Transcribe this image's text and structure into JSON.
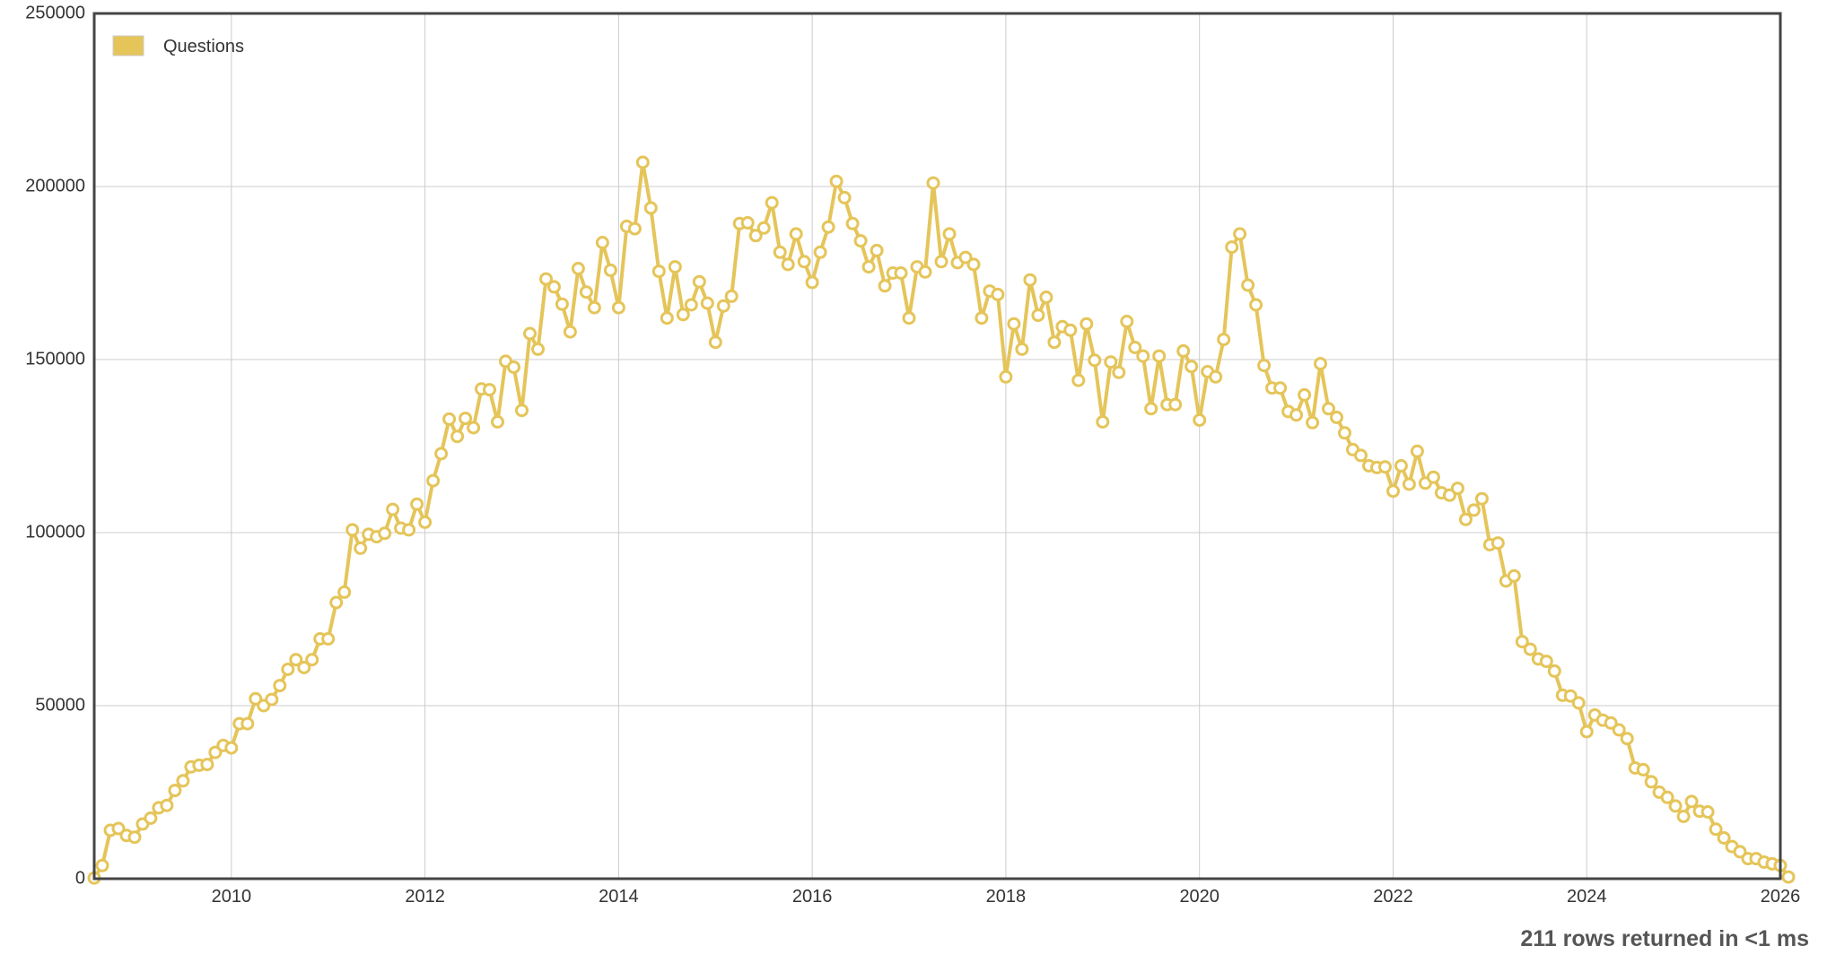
{
  "legend": {
    "label": "Questions",
    "color": "#e5c55a"
  },
  "status": {
    "text": "211 rows returned in <1 ms"
  },
  "colors": {
    "series": "#e5c55a",
    "point_fill": "#ffffff",
    "grid": "#cccccc",
    "frame": "#444444",
    "text": "#333333"
  },
  "chart_data": {
    "type": "line",
    "title": "",
    "xlabel": "",
    "ylabel": "",
    "legend_position": "top-left",
    "grid": true,
    "xlim": [
      "2008-08",
      "2026-01"
    ],
    "ylim": [
      0,
      250000
    ],
    "x_ticks": [
      "2010",
      "2012",
      "2014",
      "2016",
      "2018",
      "2020",
      "2022",
      "2024",
      "2026"
    ],
    "y_ticks": [
      0,
      50000,
      100000,
      150000,
      200000,
      250000
    ],
    "series": [
      {
        "name": "Questions",
        "start": "2008-08",
        "interval": "month",
        "values": [
          200,
          3800,
          14000,
          14500,
          12500,
          12000,
          15800,
          17500,
          20500,
          21200,
          25500,
          28300,
          32300,
          32800,
          33000,
          36500,
          38500,
          37800,
          44800,
          44800,
          52000,
          50000,
          51800,
          55800,
          60500,
          63300,
          61000,
          63300,
          69300,
          69300,
          79800,
          82800,
          100800,
          95500,
          99500,
          98800,
          99800,
          106700,
          101300,
          100800,
          108200,
          103000,
          115000,
          122800,
          132800,
          127800,
          133000,
          130300,
          141500,
          141300,
          132000,
          149500,
          147800,
          135300,
          157500,
          153000,
          173300,
          171000,
          166000,
          158000,
          176300,
          169500,
          165000,
          183800,
          175800,
          165000,
          188500,
          187800,
          207000,
          193800,
          175500,
          162000,
          176800,
          163000,
          165800,
          172500,
          166300,
          155000,
          165500,
          168300,
          189300,
          189500,
          185800,
          188000,
          195300,
          181000,
          177500,
          186300,
          178300,
          172300,
          181000,
          188300,
          201500,
          196800,
          189300,
          184300,
          176800,
          181500,
          171300,
          175000,
          175000,
          162000,
          176800,
          175300,
          201000,
          178300,
          186300,
          178000,
          179500,
          177500,
          162000,
          169800,
          168800,
          145000,
          160300,
          153000,
          173000,
          162800,
          168000,
          155000,
          159500,
          158500,
          144000,
          160300,
          149800,
          132000,
          149300,
          146300,
          161000,
          153500,
          151000,
          135800,
          151000,
          137000,
          137000,
          152500,
          148000,
          132500,
          146500,
          145000,
          155800,
          182500,
          186300,
          171500,
          165800,
          148300,
          141800,
          141800,
          135000,
          134000,
          139800,
          131800,
          148800,
          135800,
          133300,
          128800,
          124000,
          122300,
          119300,
          118800,
          119000,
          112000,
          119300,
          114000,
          123500,
          114300,
          116000,
          111500,
          110800,
          112800,
          103800,
          106500,
          109800,
          96500,
          97000,
          86000,
          87500,
          68500,
          66300,
          63500,
          62800,
          60000,
          53000,
          52800,
          50800,
          42500,
          47300,
          45800,
          45000,
          43000,
          40500,
          32000,
          31500,
          28000,
          25000,
          23500,
          21000,
          18000,
          22300,
          19500,
          19300,
          14300,
          11800,
          9300,
          7800,
          5800,
          5800,
          4800,
          4300,
          3800,
          500
        ]
      }
    ]
  }
}
